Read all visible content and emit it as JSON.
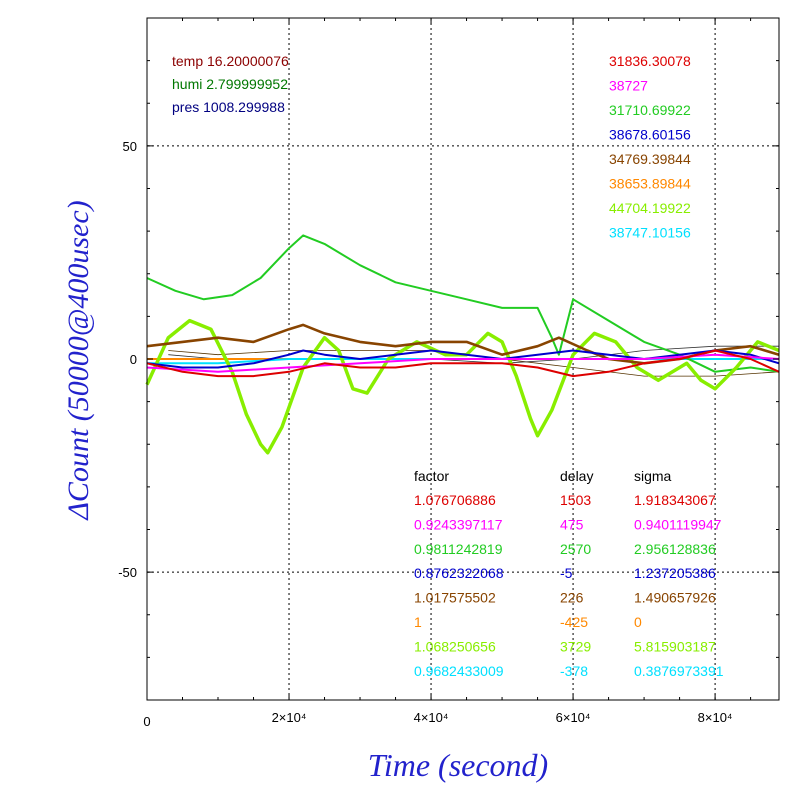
{
  "chart_data": {
    "type": "line",
    "ylabel": "ΔCount (50000@400usec)",
    "xlabel": "Time (second)",
    "xlim": [
      0,
      89000
    ],
    "ylim": [
      -80,
      80
    ],
    "x_ticks": [
      {
        "value": 0,
        "label": "0"
      },
      {
        "value": 20000,
        "label": "2×10⁴"
      },
      {
        "value": 40000,
        "label": "4×10⁴"
      },
      {
        "value": 60000,
        "label": "6×10⁴"
      },
      {
        "value": 80000,
        "label": "8×10⁴"
      }
    ],
    "y_ticks": [
      {
        "value": 50,
        "label": "50"
      },
      {
        "value": 0,
        "label": "0"
      },
      {
        "value": -50,
        "label": "-50"
      }
    ],
    "grid": true,
    "env": [
      {
        "text": "temp 16.20000076",
        "color": "#8b0000"
      },
      {
        "text": "humi 2.799999952",
        "color": "#007700"
      },
      {
        "text": "pres 1008.299988",
        "color": "#000080"
      }
    ],
    "table_header": {
      "factor": "factor",
      "delay": "delay",
      "sigma": "sigma"
    },
    "series": [
      {
        "color": "#dd0000",
        "base": "31836.30078",
        "factor": "1.076706886",
        "delay": "1503",
        "sigma": "1.918343067",
        "points": [
          [
            0,
            -1
          ],
          [
            5000,
            -3
          ],
          [
            10000,
            -4
          ],
          [
            15000,
            -4
          ],
          [
            20000,
            -3
          ],
          [
            25000,
            -1
          ],
          [
            30000,
            -2
          ],
          [
            35000,
            -2
          ],
          [
            40000,
            -1
          ],
          [
            45000,
            -1
          ],
          [
            50000,
            -1
          ],
          [
            55000,
            -2
          ],
          [
            60000,
            -4
          ],
          [
            65000,
            -3
          ],
          [
            70000,
            -1
          ],
          [
            75000,
            0
          ],
          [
            80000,
            2
          ],
          [
            85000,
            0
          ],
          [
            89000,
            -3
          ]
        ]
      },
      {
        "color": "#ff00ff",
        "base": "38727",
        "factor": "0.9243397117",
        "delay": "475",
        "sigma": "0.9401119947",
        "points": [
          [
            0,
            -2
          ],
          [
            10000,
            -3
          ],
          [
            20000,
            -2
          ],
          [
            30000,
            -1
          ],
          [
            40000,
            0
          ],
          [
            50000,
            0
          ],
          [
            60000,
            0
          ],
          [
            70000,
            0
          ],
          [
            80000,
            1
          ],
          [
            89000,
            0
          ]
        ]
      },
      {
        "color": "#22cc22",
        "base": "31710.69922",
        "factor": "0.9811242819",
        "delay": "2570",
        "sigma": "2.956128836",
        "points": [
          [
            0,
            19
          ],
          [
            4000,
            16
          ],
          [
            8000,
            14
          ],
          [
            12000,
            15
          ],
          [
            16000,
            19
          ],
          [
            20000,
            26
          ],
          [
            22000,
            29
          ],
          [
            25000,
            27
          ],
          [
            30000,
            22
          ],
          [
            35000,
            18
          ],
          [
            40000,
            16
          ],
          [
            45000,
            14
          ],
          [
            50000,
            12
          ],
          [
            55000,
            12
          ],
          [
            57000,
            5
          ],
          [
            58000,
            1
          ],
          [
            60000,
            14
          ],
          [
            65000,
            9
          ],
          [
            70000,
            4
          ],
          [
            75000,
            1
          ],
          [
            80000,
            -3
          ],
          [
            85000,
            -2
          ],
          [
            89000,
            -3
          ]
        ]
      },
      {
        "color": "#0000cc",
        "base": "38678.60156",
        "factor": "0.8762322068",
        "delay": "-5",
        "sigma": "1.237205386",
        "points": [
          [
            0,
            -1
          ],
          [
            5000,
            -2
          ],
          [
            10000,
            -2
          ],
          [
            15000,
            -1
          ],
          [
            20000,
            1
          ],
          [
            22000,
            2
          ],
          [
            25000,
            1
          ],
          [
            30000,
            0
          ],
          [
            35000,
            1
          ],
          [
            40000,
            2
          ],
          [
            45000,
            1
          ],
          [
            50000,
            0
          ],
          [
            55000,
            1
          ],
          [
            60000,
            2
          ],
          [
            65000,
            1
          ],
          [
            70000,
            0
          ],
          [
            75000,
            1
          ],
          [
            80000,
            2
          ],
          [
            85000,
            1
          ],
          [
            89000,
            -1
          ]
        ]
      },
      {
        "color": "#884400",
        "base": "34769.39844",
        "factor": "1.017575502",
        "delay": "226",
        "sigma": "1.490657926",
        "points": [
          [
            0,
            3
          ],
          [
            5000,
            4
          ],
          [
            10000,
            5
          ],
          [
            15000,
            4
          ],
          [
            20000,
            7
          ],
          [
            22000,
            8
          ],
          [
            25000,
            6
          ],
          [
            30000,
            4
          ],
          [
            35000,
            3
          ],
          [
            40000,
            4
          ],
          [
            45000,
            4
          ],
          [
            50000,
            1
          ],
          [
            55000,
            3
          ],
          [
            58000,
            5
          ],
          [
            62000,
            2
          ],
          [
            65000,
            0
          ],
          [
            70000,
            -1
          ],
          [
            75000,
            0
          ],
          [
            80000,
            2
          ],
          [
            85000,
            3
          ],
          [
            89000,
            1
          ]
        ]
      },
      {
        "color": "#ff8800",
        "base": "38653.89844",
        "factor": "1",
        "delay": "-425",
        "sigma": "0",
        "points": [
          [
            0,
            0
          ],
          [
            89000,
            0
          ]
        ]
      },
      {
        "color": "#88ee00",
        "base": "44704.19922",
        "factor": "1.068250656",
        "delay": "3729",
        "sigma": "5.815903187",
        "points": [
          [
            0,
            -6
          ],
          [
            3000,
            5
          ],
          [
            6000,
            9
          ],
          [
            9000,
            7
          ],
          [
            12000,
            -3
          ],
          [
            14000,
            -13
          ],
          [
            16000,
            -20
          ],
          [
            17000,
            -22
          ],
          [
            19000,
            -16
          ],
          [
            22000,
            -2
          ],
          [
            25000,
            5
          ],
          [
            27000,
            2
          ],
          [
            29000,
            -7
          ],
          [
            31000,
            -8
          ],
          [
            34000,
            0
          ],
          [
            38000,
            4
          ],
          [
            42000,
            1
          ],
          [
            45000,
            1
          ],
          [
            48000,
            6
          ],
          [
            50000,
            4
          ],
          [
            52000,
            -4
          ],
          [
            54000,
            -14
          ],
          [
            55000,
            -18
          ],
          [
            57000,
            -12
          ],
          [
            60000,
            1
          ],
          [
            63000,
            6
          ],
          [
            66000,
            4
          ],
          [
            69000,
            -2
          ],
          [
            72000,
            -5
          ],
          [
            76000,
            -1
          ],
          [
            78000,
            -5
          ],
          [
            80000,
            -7
          ],
          [
            83000,
            -2
          ],
          [
            86000,
            4
          ],
          [
            89000,
            2
          ]
        ]
      },
      {
        "color": "#00e0ff",
        "base": "38747.10156",
        "factor": "0.9682433009",
        "delay": "-378",
        "sigma": "0.3876973391",
        "points": [
          [
            0,
            -1
          ],
          [
            10000,
            -1
          ],
          [
            20000,
            0
          ],
          [
            30000,
            0
          ],
          [
            40000,
            0
          ],
          [
            50000,
            0
          ],
          [
            60000,
            0
          ],
          [
            70000,
            0
          ],
          [
            80000,
            0
          ],
          [
            89000,
            0
          ]
        ]
      }
    ]
  }
}
